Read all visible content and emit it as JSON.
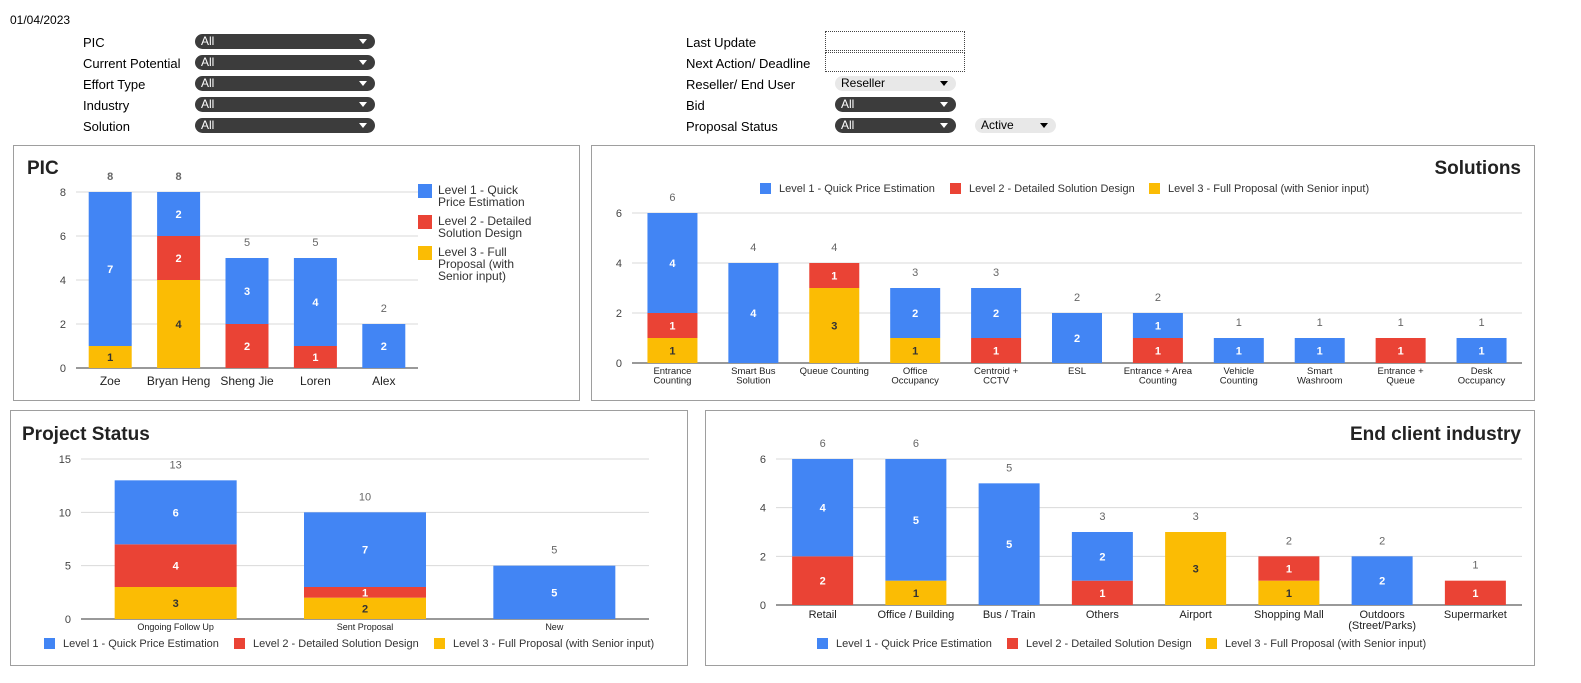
{
  "report_date": "01/04/2023",
  "filters": {
    "pic": {
      "label": "PIC",
      "value": "All"
    },
    "current_potential": {
      "label": "Current Potential",
      "value": "All"
    },
    "effort_type": {
      "label": "Effort Type",
      "value": "All"
    },
    "industry": {
      "label": "Industry",
      "value": "All"
    },
    "solution": {
      "label": "Solution",
      "value": "All"
    },
    "last_update": {
      "label": "Last Update",
      "value": ""
    },
    "next_action": {
      "label": "Next Action/ Deadline",
      "value": ""
    },
    "reseller": {
      "label": "Reseller/ End User",
      "value": "Reseller"
    },
    "bid": {
      "label": "Bid",
      "value": "All"
    },
    "proposal_status": {
      "label": "Proposal Status",
      "value": "All",
      "extra_value": "Active"
    }
  },
  "colors": {
    "level1": "#4285f4",
    "level2": "#ea4335",
    "level3": "#fbbc04",
    "grid": "#d9d9d9",
    "axis": "#333333"
  },
  "chart_data": [
    {
      "id": "pic",
      "type": "bar",
      "stacked": true,
      "title": "PIC",
      "categories": [
        "Zoe",
        "Bryan Heng",
        "Sheng Jie",
        "Loren",
        "Alex"
      ],
      "series": [
        {
          "name": "Level 1 - Quick Price Estimation",
          "values": [
            7,
            2,
            3,
            4,
            2
          ]
        },
        {
          "name": "Level 2 - Detailed Solution Design",
          "values": [
            0,
            2,
            2,
            1,
            0
          ]
        },
        {
          "name": "Level 3 - Full Proposal (with Senior input)",
          "values": [
            1,
            4,
            0,
            0,
            0
          ]
        }
      ],
      "totals": [
        8,
        8,
        5,
        5,
        2
      ],
      "ylim": [
        0,
        8
      ],
      "yticks": [
        0,
        2,
        4,
        6,
        8
      ],
      "legend_position": "right",
      "grid": true
    },
    {
      "id": "solutions",
      "type": "bar",
      "stacked": true,
      "title": "Solutions",
      "categories": [
        [
          "Entrance",
          "Counting"
        ],
        [
          "Smart Bus",
          "Solution"
        ],
        [
          "Queue Counting"
        ],
        [
          "Office",
          "Occupancy"
        ],
        [
          "Centroid +",
          "CCTV"
        ],
        [
          "ESL"
        ],
        [
          "Entrance + Area",
          "Counting"
        ],
        [
          "Vehicle",
          "Counting"
        ],
        [
          "Smart",
          "Washroom"
        ],
        [
          "Entrance +",
          "Queue"
        ],
        [
          "Desk",
          "Occupancy"
        ]
      ],
      "series": [
        {
          "name": "Level 1 - Quick Price Estimation",
          "values": [
            4,
            4,
            0,
            2,
            2,
            2,
            1,
            1,
            1,
            0,
            1
          ]
        },
        {
          "name": "Level 2 - Detailed Solution Design",
          "values": [
            1,
            0,
            1,
            0,
            1,
            0,
            1,
            0,
            0,
            1,
            0
          ]
        },
        {
          "name": "Level 3 - Full Proposal (with Senior input)",
          "values": [
            1,
            0,
            3,
            1,
            0,
            0,
            0,
            0,
            0,
            0,
            0
          ]
        }
      ],
      "totals": [
        6,
        4,
        4,
        3,
        3,
        2,
        2,
        1,
        1,
        1,
        1
      ],
      "ylim": [
        0,
        6
      ],
      "yticks": [
        0,
        2,
        4,
        6
      ],
      "legend_position": "top",
      "grid": true
    },
    {
      "id": "project_status",
      "type": "bar",
      "stacked": true,
      "title": "Project Status",
      "categories": [
        [
          "Ongoing Follow Up"
        ],
        [
          "Sent Proposal"
        ],
        [
          "New"
        ]
      ],
      "series": [
        {
          "name": "Level 1 - Quick Price Estimation",
          "values": [
            6,
            7,
            5
          ]
        },
        {
          "name": "Level 2 - Detailed Solution Design",
          "values": [
            4,
            1,
            0
          ]
        },
        {
          "name": "Level 3 - Full Proposal (with Senior input)",
          "values": [
            3,
            2,
            0
          ]
        }
      ],
      "totals": [
        13,
        10,
        5
      ],
      "ylim": [
        0,
        15
      ],
      "yticks": [
        0,
        5,
        10,
        15
      ],
      "legend_position": "bottom",
      "grid": true
    },
    {
      "id": "industry",
      "type": "bar",
      "stacked": true,
      "title": "End client industry",
      "categories": [
        [
          "Retail"
        ],
        [
          "Office / Building"
        ],
        [
          "Bus / Train"
        ],
        [
          "Others"
        ],
        [
          "Airport"
        ],
        [
          "Shopping Mall"
        ],
        [
          "Outdoors",
          "(Street/Parks)"
        ],
        [
          "Supermarket"
        ]
      ],
      "series": [
        {
          "name": "Level 1 - Quick Price Estimation",
          "values": [
            4,
            5,
            5,
            2,
            0,
            0,
            2,
            0
          ]
        },
        {
          "name": "Level 2 - Detailed Solution Design",
          "values": [
            2,
            0,
            0,
            1,
            0,
            1,
            0,
            1
          ]
        },
        {
          "name": "Level 3 - Full Proposal (with Senior input)",
          "values": [
            0,
            1,
            0,
            0,
            3,
            1,
            0,
            0
          ]
        }
      ],
      "totals": [
        6,
        6,
        5,
        3,
        3,
        2,
        2,
        1
      ],
      "ylim": [
        0,
        6
      ],
      "yticks": [
        0,
        2,
        4,
        6
      ],
      "legend_position": "bottom",
      "grid": true
    }
  ]
}
